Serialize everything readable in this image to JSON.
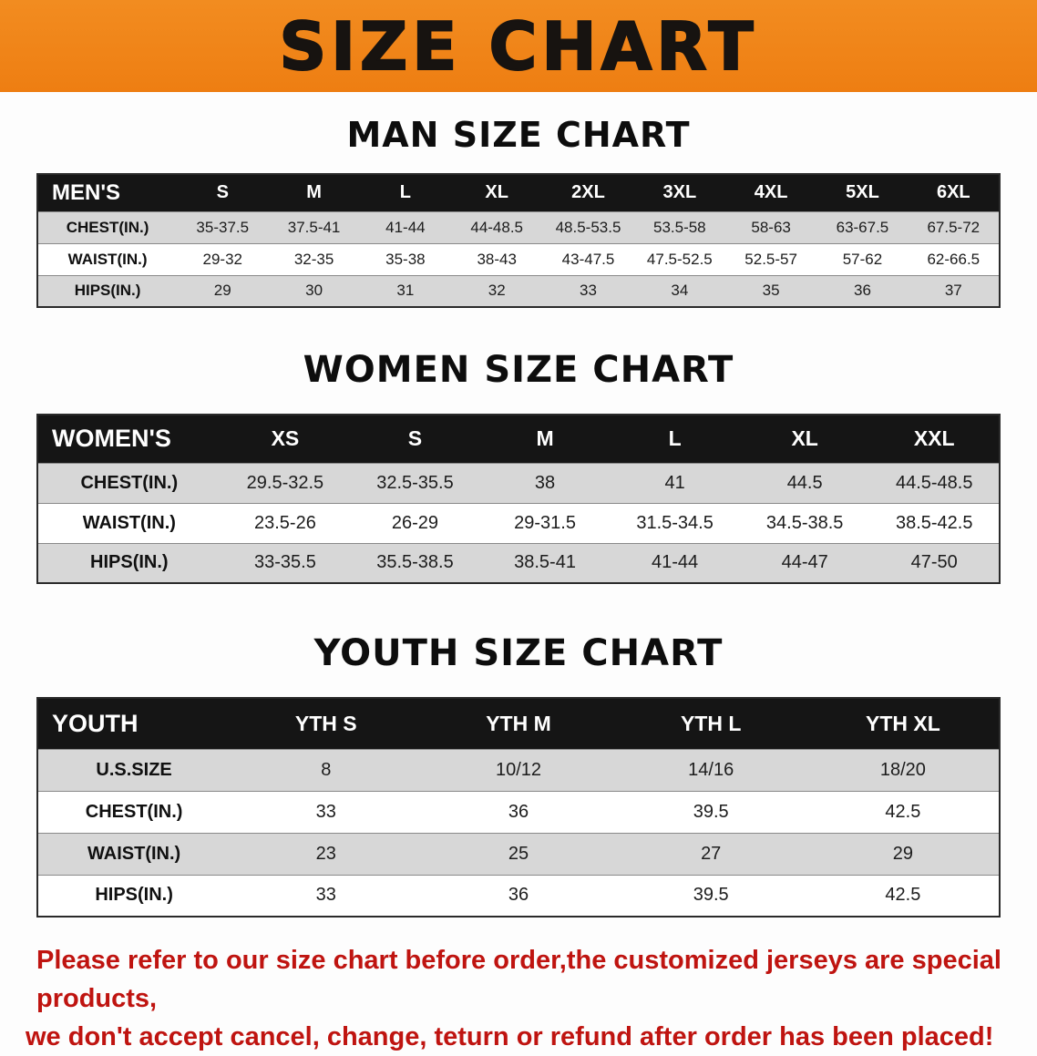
{
  "banner": {
    "title": "SIZE CHART"
  },
  "colors": {
    "banner_bg": "#f0831c",
    "header_bg": "#151515",
    "row_alt_bg": "#d7d7d7",
    "note_color": "#bf1410"
  },
  "sections": [
    {
      "heading": "MAN SIZE CHART",
      "table": {
        "header": [
          "MEN'S",
          "S",
          "M",
          "L",
          "XL",
          "2XL",
          "3XL",
          "4XL",
          "5XL",
          "6XL"
        ],
        "rows": [
          [
            "CHEST(IN.)",
            "35-37.5",
            "37.5-41",
            "41-44",
            "44-48.5",
            "48.5-53.5",
            "53.5-58",
            "58-63",
            "63-67.5",
            "67.5-72"
          ],
          [
            "WAIST(IN.)",
            "29-32",
            "32-35",
            "35-38",
            "38-43",
            "43-47.5",
            "47.5-52.5",
            "52.5-57",
            "57-62",
            "62-66.5"
          ],
          [
            "HIPS(IN.)",
            "29",
            "30",
            "31",
            "32",
            "33",
            "34",
            "35",
            "36",
            "37"
          ]
        ]
      }
    },
    {
      "heading": "WOMEN SIZE CHART",
      "table": {
        "header": [
          "WOMEN'S",
          "XS",
          "S",
          "M",
          "L",
          "XL",
          "XXL"
        ],
        "rows": [
          [
            "CHEST(IN.)",
            "29.5-32.5",
            "32.5-35.5",
            "38",
            "41",
            "44.5",
            "44.5-48.5"
          ],
          [
            "WAIST(IN.)",
            "23.5-26",
            "26-29",
            "29-31.5",
            "31.5-34.5",
            "34.5-38.5",
            "38.5-42.5"
          ],
          [
            "HIPS(IN.)",
            "33-35.5",
            "35.5-38.5",
            "38.5-41",
            "41-44",
            "44-47",
            "47-50"
          ]
        ]
      }
    },
    {
      "heading": "YOUTH SIZE CHART",
      "table": {
        "header": [
          "YOUTH",
          "YTH S",
          "YTH M",
          "YTH L",
          "YTH XL"
        ],
        "rows": [
          [
            "U.S.SIZE",
            "8",
            "10/12",
            "14/16",
            "18/20"
          ],
          [
            "CHEST(IN.)",
            "33",
            "36",
            "39.5",
            "42.5"
          ],
          [
            "WAIST(IN.)",
            "23",
            "25",
            "27",
            "29"
          ],
          [
            "HIPS(IN.)",
            "33",
            "36",
            "39.5",
            "42.5"
          ]
        ]
      }
    }
  ],
  "footer": {
    "line1": "Please refer to our size chart before order,the customized jerseys are special products,",
    "line2": "we don't accept cancel, change, teturn or refund after order has been placed!"
  }
}
